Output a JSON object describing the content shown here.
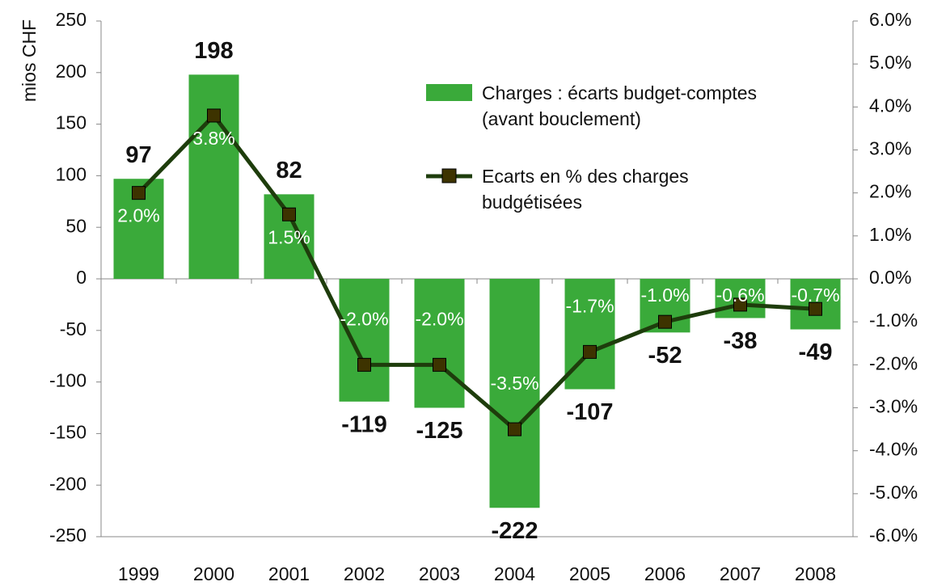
{
  "chart_data": {
    "type": "bar",
    "y_label": "mios CHF",
    "categories": [
      "1999",
      "2000",
      "2001",
      "2002",
      "2003",
      "2004",
      "2005",
      "2006",
      "2007",
      "2008"
    ],
    "series": [
      {
        "name": "Charges : écarts budget-comptes (avant bouclement)",
        "type": "bar",
        "color": "#3aaa3a",
        "values": [
          97,
          198,
          82,
          -119,
          -125,
          -222,
          -107,
          -52,
          -38,
          -49
        ]
      },
      {
        "name": "Ecarts en % des charges budgétisées",
        "type": "line",
        "axis": "y2",
        "color": "#1e3d0c",
        "marker_color": "#3d3300",
        "values": [
          2.0,
          3.8,
          1.5,
          -2.0,
          -2.0,
          -3.5,
          -1.7,
          -1.0,
          -0.6,
          -0.7
        ],
        "value_labels": [
          "2.0%",
          "3.8%",
          "1.5%",
          "-2.0%",
          "-2.0%",
          "-3.5%",
          "-1.7%",
          "-1.0%",
          "-0.6%",
          "-0.7%"
        ]
      }
    ],
    "ylim": [
      -250,
      250
    ],
    "yticks": [
      -250,
      -200,
      -150,
      -100,
      -50,
      0,
      50,
      100,
      150,
      200,
      250
    ],
    "y2lim": [
      -6,
      6
    ],
    "y2ticks": [
      {
        "value": -6,
        "label": "-6.0%"
      },
      {
        "value": -5,
        "label": "-5.0%"
      },
      {
        "value": -4,
        "label": "-4.0%"
      },
      {
        "value": -3,
        "label": "-3.0%"
      },
      {
        "value": -2,
        "label": "-2.0%"
      },
      {
        "value": -1,
        "label": "-1.0%"
      },
      {
        "value": 0,
        "label": "0.0%"
      },
      {
        "value": 1,
        "label": "1.0%"
      },
      {
        "value": 2,
        "label": "2.0%"
      },
      {
        "value": 3,
        "label": "3.0%"
      },
      {
        "value": 4,
        "label": "4.0%"
      },
      {
        "value": 5,
        "label": "5.0%"
      },
      {
        "value": 6,
        "label": "6.0%"
      }
    ],
    "grid": false
  }
}
